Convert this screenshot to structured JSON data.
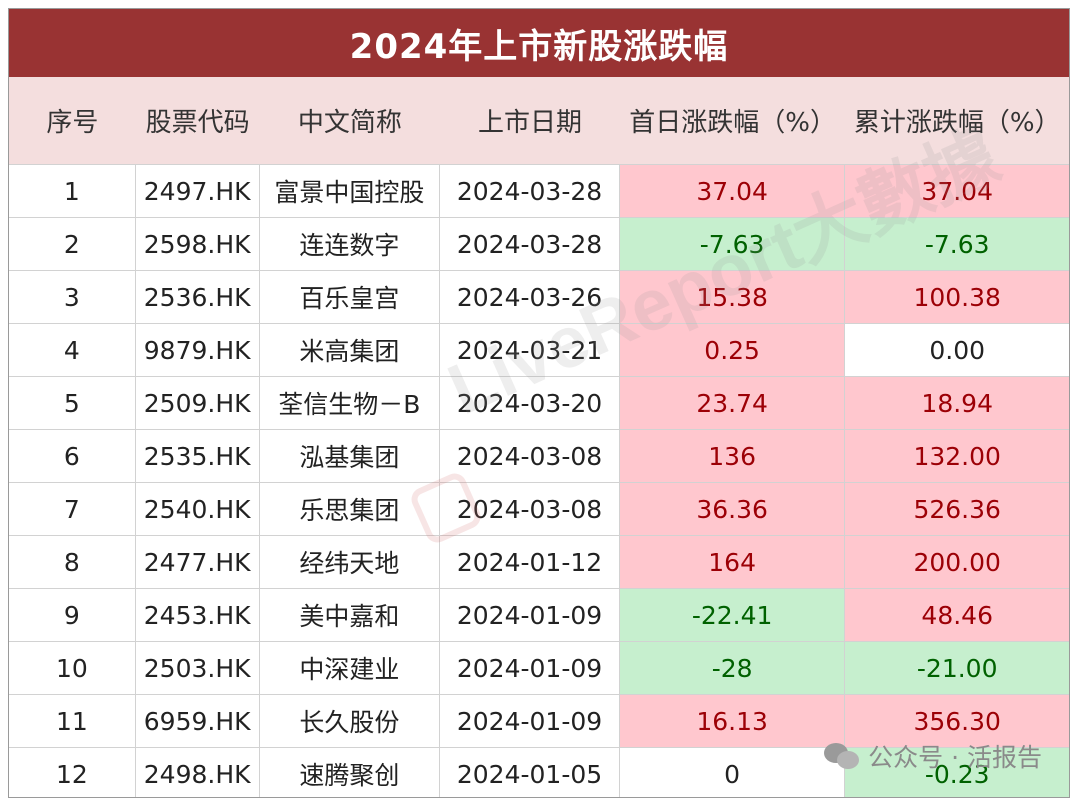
{
  "title": "2024年上市新股涨跌幅",
  "headers": {
    "idx": "序号",
    "code": "股票代码",
    "name": "中文简称",
    "date": "上市日期",
    "first_day": "首日涨跌幅（%）",
    "cumulative": "累计涨跌幅（%）"
  },
  "rows": [
    {
      "idx": "1",
      "code": "2497.HK",
      "name": "富景中国控股",
      "date": "2024-03-28",
      "first_day": "37.04",
      "cumulative": "37.04"
    },
    {
      "idx": "2",
      "code": "2598.HK",
      "name": "连连数字",
      "date": "2024-03-28",
      "first_day": "-7.63",
      "cumulative": "-7.63"
    },
    {
      "idx": "3",
      "code": "2536.HK",
      "name": "百乐皇宫",
      "date": "2024-03-26",
      "first_day": "15.38",
      "cumulative": "100.38"
    },
    {
      "idx": "4",
      "code": "9879.HK",
      "name": "米高集团",
      "date": "2024-03-21",
      "first_day": "0.25",
      "cumulative": "0.00"
    },
    {
      "idx": "5",
      "code": "2509.HK",
      "name": "荃信生物－B",
      "date": "2024-03-20",
      "first_day": "23.74",
      "cumulative": "18.94"
    },
    {
      "idx": "6",
      "code": "2535.HK",
      "name": "泓基集团",
      "date": "2024-03-08",
      "first_day": "136",
      "cumulative": "132.00"
    },
    {
      "idx": "7",
      "code": "2540.HK",
      "name": "乐思集团",
      "date": "2024-03-08",
      "first_day": "36.36",
      "cumulative": "526.36"
    },
    {
      "idx": "8",
      "code": "2477.HK",
      "name": "经纬天地",
      "date": "2024-01-12",
      "first_day": "164",
      "cumulative": "200.00"
    },
    {
      "idx": "9",
      "code": "2453.HK",
      "name": "美中嘉和",
      "date": "2024-01-09",
      "first_day": "-22.41",
      "cumulative": "48.46"
    },
    {
      "idx": "10",
      "code": "2503.HK",
      "name": "中深建业",
      "date": "2024-01-09",
      "first_day": "-28",
      "cumulative": "-21.00"
    },
    {
      "idx": "11",
      "code": "6959.HK",
      "name": "长久股份",
      "date": "2024-01-09",
      "first_day": "16.13",
      "cumulative": "356.30"
    },
    {
      "idx": "12",
      "code": "2498.HK",
      "name": "速腾聚创",
      "date": "2024-01-05",
      "first_day": "0",
      "cumulative": "-0.23"
    }
  ],
  "watermark": "LiveReport大數據",
  "wechat_label": "公众号 · 活报告",
  "colors": {
    "title_bg": "#993333",
    "header_bg": "#f4dede",
    "positive_bg": "#ffc7ce",
    "positive_text": "#9c0006",
    "negative_bg": "#c6efce",
    "negative_text": "#006100",
    "recent_date_text": "#c55a11"
  }
}
